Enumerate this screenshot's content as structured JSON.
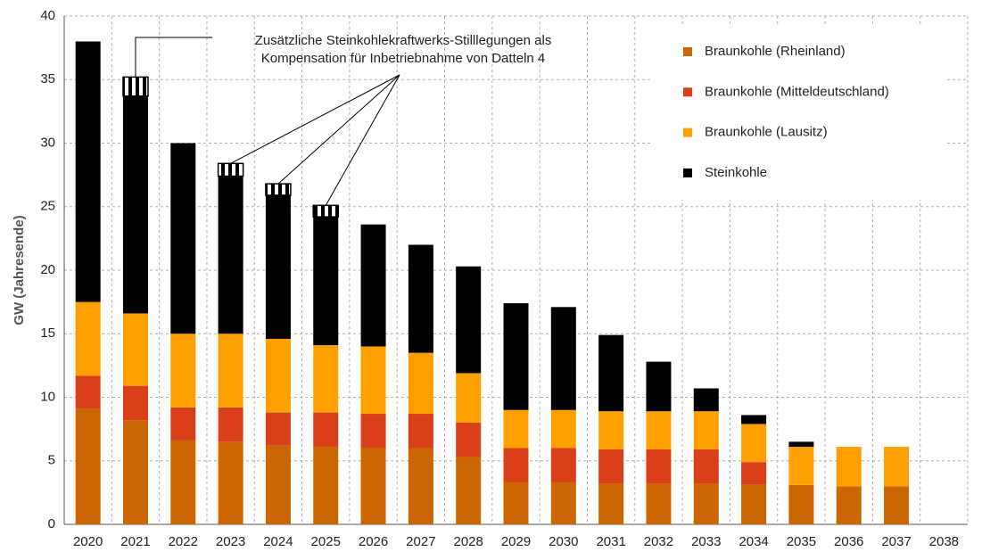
{
  "chart_data": {
    "type": "bar",
    "stacked": true,
    "ylabel": "GW (Jahresende)",
    "annotation": [
      "Zusätzliche Steinkohlekraftwerks-Stilllegungen als",
      "Kompensation für Inbetriebnahme von Datteln 4"
    ],
    "categories": [
      "2020",
      "2021",
      "2022",
      "2023",
      "2024",
      "2025",
      "2026",
      "2027",
      "2028",
      "2029",
      "2030",
      "2031",
      "2032",
      "2033",
      "2034",
      "2035",
      "2036",
      "2037",
      "2038"
    ],
    "series": [
      {
        "name": "Braunkohle (Rheinland)",
        "color": "#cc6600",
        "values": [
          9.1,
          8.2,
          6.6,
          6.5,
          6.2,
          6.1,
          6.0,
          6.0,
          5.3,
          3.3,
          3.3,
          3.2,
          3.2,
          3.2,
          3.1,
          3.1,
          3.0,
          3.0,
          0
        ]
      },
      {
        "name": "Braunkohle (Mitteldeutschland)",
        "color": "#d9401a",
        "values": [
          2.6,
          2.7,
          2.6,
          2.7,
          2.6,
          2.7,
          2.7,
          2.7,
          2.7,
          2.7,
          2.7,
          2.7,
          2.7,
          2.7,
          1.8,
          0,
          0,
          0,
          0
        ]
      },
      {
        "name": "Braunkohle (Lausitz)",
        "color": "#ffa000",
        "values": [
          5.8,
          5.7,
          5.8,
          5.8,
          5.8,
          5.3,
          5.3,
          4.8,
          3.9,
          3.0,
          3.0,
          3.0,
          3.0,
          3.0,
          3.0,
          3.0,
          3.1,
          3.1,
          0
        ]
      },
      {
        "name": "Steinkohle",
        "color": "#000000",
        "values": [
          20.5,
          17.1,
          15.0,
          12.4,
          11.3,
          10.1,
          9.6,
          8.5,
          8.4,
          8.4,
          8.1,
          6.0,
          3.9,
          1.8,
          0.7,
          0.4,
          0,
          0,
          0
        ]
      },
      {
        "pattern": "hatch",
        "color": "#000000",
        "values": [
          null,
          1.5,
          null,
          1.0,
          0.9,
          0.9,
          null,
          null,
          null,
          null,
          null,
          null,
          null,
          null,
          null,
          null,
          null,
          null,
          null
        ]
      }
    ],
    "ylim": [
      0,
      40
    ],
    "yticks": [
      0,
      5,
      10,
      15,
      20,
      25,
      30,
      35,
      40
    ],
    "grid": true,
    "legend": "upper right"
  }
}
